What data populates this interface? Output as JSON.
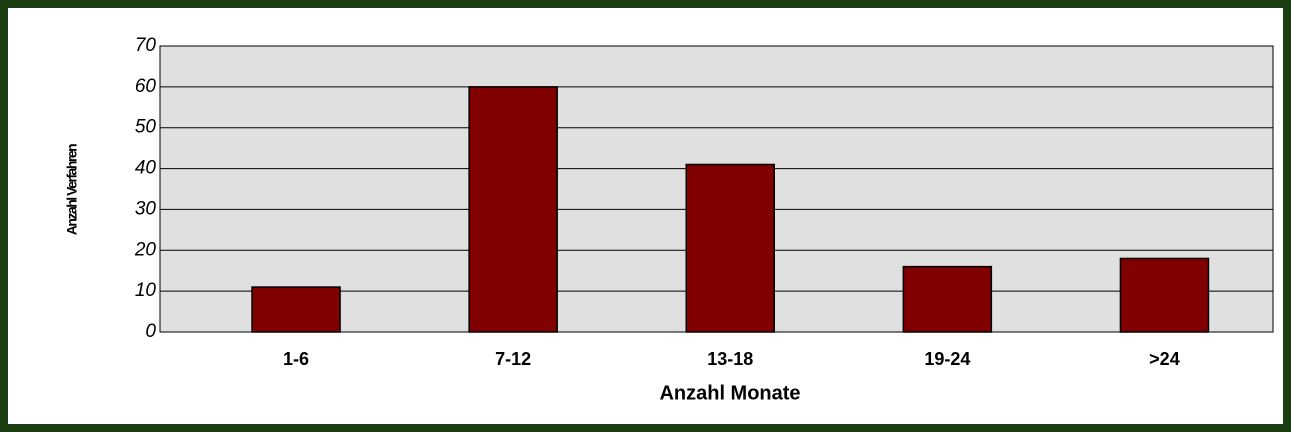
{
  "chart_data": {
    "type": "bar",
    "categories": [
      "1-6",
      "7-12",
      "13-18",
      "19-24",
      ">24"
    ],
    "values": [
      11,
      60,
      41,
      16,
      18
    ],
    "color": "#800000",
    "xlabel": "Anzahl Monate",
    "ylabel": "Anzahl Verfahren",
    "ylim": [
      0,
      70
    ],
    "yticks": [
      0,
      10,
      20,
      30,
      40,
      50,
      60,
      70
    ],
    "grid": true
  }
}
